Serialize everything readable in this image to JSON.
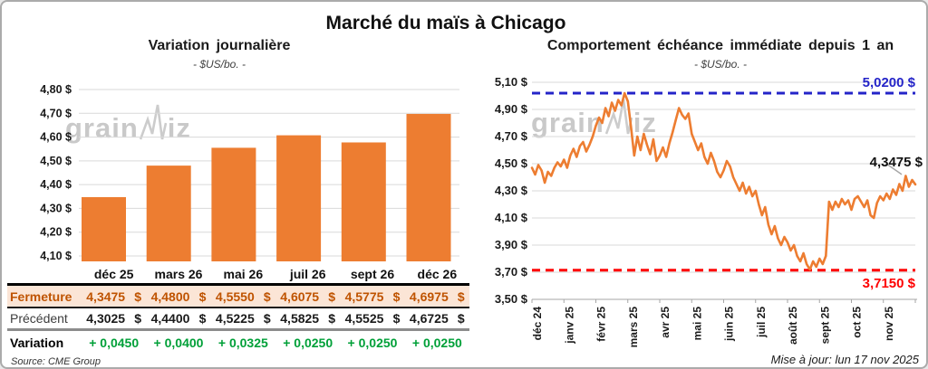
{
  "page": {
    "title": "Marché du maïs à Chicago",
    "source": "Source: CME Group",
    "updated": "Mise à jour: lun 17 nov 2025",
    "watermark": {
      "grain": "grain",
      "iz": "iz"
    }
  },
  "left": {
    "title": "Variation journalière",
    "subtitle": "- $US/bo. -",
    "table": {
      "columns": [
        "déc 25",
        "mars 26",
        "mai 26",
        "juil 26",
        "sept 26",
        "déc 26"
      ],
      "rows": [
        {
          "label": "Fermeture",
          "values": [
            "4,3475 $",
            "4,4800 $",
            "4,5550 $",
            "4,6075 $",
            "4,5775 $",
            "4,6975 $"
          ]
        },
        {
          "label": "Précédent",
          "values": [
            "4,3025 $",
            "4,4400 $",
            "4,5225 $",
            "4,5825 $",
            "4,5525 $",
            "4,6725 $"
          ]
        },
        {
          "label": "Variation",
          "values": [
            "+ 0,0450",
            "+ 0,0400",
            "+ 0,0325",
            "+ 0,0250",
            "+ 0,0250",
            "+ 0,0250"
          ]
        }
      ]
    }
  },
  "right": {
    "title": "Comportement échéance immédiate depuis 1 an",
    "subtitle": "- $US/bo. -"
  },
  "chart_data": [
    {
      "type": "bar",
      "title": "Variation journalière",
      "subtitle": "- $US/bo. -",
      "categories": [
        "déc 25",
        "mars 26",
        "mai 26",
        "juil 26",
        "sept 26",
        "déc 26"
      ],
      "values": [
        4.3475,
        4.48,
        4.555,
        4.6075,
        4.5775,
        4.6975
      ],
      "ylim": [
        4.1,
        4.8
      ],
      "yticks": [
        4.8,
        4.7,
        4.6,
        4.5,
        4.4,
        4.3,
        4.2,
        4.1
      ],
      "ytick_labels": [
        "4,80 $",
        "4,70 $",
        "4,60 $",
        "4,50 $",
        "4,40 $",
        "4,30 $",
        "4,20 $",
        "4,10 $"
      ],
      "grid": true,
      "colors": {
        "bar": "#ed7d31",
        "grid": "#d9d9d9"
      }
    },
    {
      "type": "line",
      "title": "Comportement échéance immédiate depuis 1 an",
      "subtitle": "- $US/bo. -",
      "x_labels": [
        "déc 24",
        "janv 25",
        "févr 25",
        "mars 25",
        "avr 25",
        "mai 25",
        "juin 25",
        "juil 25",
        "août 25",
        "sept 25",
        "oct 25",
        "nov 25"
      ],
      "values": [
        4.47,
        4.42,
        4.49,
        4.45,
        4.36,
        4.44,
        4.41,
        4.47,
        4.51,
        4.48,
        4.53,
        4.47,
        4.56,
        4.61,
        4.55,
        4.63,
        4.66,
        4.59,
        4.64,
        4.7,
        4.78,
        4.84,
        4.8,
        4.91,
        4.85,
        4.95,
        4.89,
        4.97,
        4.93,
        5.02,
        4.96,
        4.77,
        4.56,
        4.7,
        4.6,
        4.72,
        4.64,
        4.57,
        4.68,
        4.52,
        4.56,
        4.62,
        4.55,
        4.65,
        4.73,
        4.82,
        4.91,
        4.86,
        4.83,
        4.87,
        4.72,
        4.66,
        4.6,
        4.65,
        4.55,
        4.5,
        4.58,
        4.52,
        4.44,
        4.4,
        4.45,
        4.52,
        4.48,
        4.4,
        4.35,
        4.3,
        4.36,
        4.28,
        4.33,
        4.26,
        4.3,
        4.2,
        4.12,
        4.18,
        4.05,
        3.98,
        4.04,
        3.95,
        3.9,
        3.96,
        3.92,
        3.86,
        3.9,
        3.82,
        3.78,
        3.84,
        3.76,
        3.72,
        3.78,
        3.74,
        3.8,
        3.76,
        3.82,
        4.22,
        4.16,
        4.22,
        4.18,
        4.24,
        4.2,
        4.23,
        4.16,
        4.24,
        4.26,
        4.22,
        4.18,
        4.23,
        4.12,
        4.1,
        4.21,
        4.26,
        4.23,
        4.28,
        4.24,
        4.31,
        4.27,
        4.35,
        4.3,
        4.41,
        4.33,
        4.38,
        4.3475
      ],
      "ylim": [
        3.5,
        5.1
      ],
      "yticks": [
        5.1,
        4.9,
        4.7,
        4.5,
        4.3,
        4.1,
        3.9,
        3.7,
        3.5
      ],
      "ytick_labels": [
        "5,10 $",
        "4,90 $",
        "4,70 $",
        "4,50 $",
        "4,30 $",
        "4,10 $",
        "3,90 $",
        "3,70 $",
        "3,50 $"
      ],
      "grid": true,
      "reference_lines": {
        "max": {
          "value": 5.02,
          "label": "5,0200 $",
          "color": "#2424c8"
        },
        "min": {
          "value": 3.715,
          "label": "3,7150 $",
          "color": "#fe0000"
        }
      },
      "last": {
        "value": 4.3475,
        "label": "4,3475 $"
      },
      "colors": {
        "line": "#ed7d31",
        "grid": "#d9d9d9",
        "axis": "#a6a6a6",
        "leader": "#a6a6a6"
      }
    }
  ]
}
